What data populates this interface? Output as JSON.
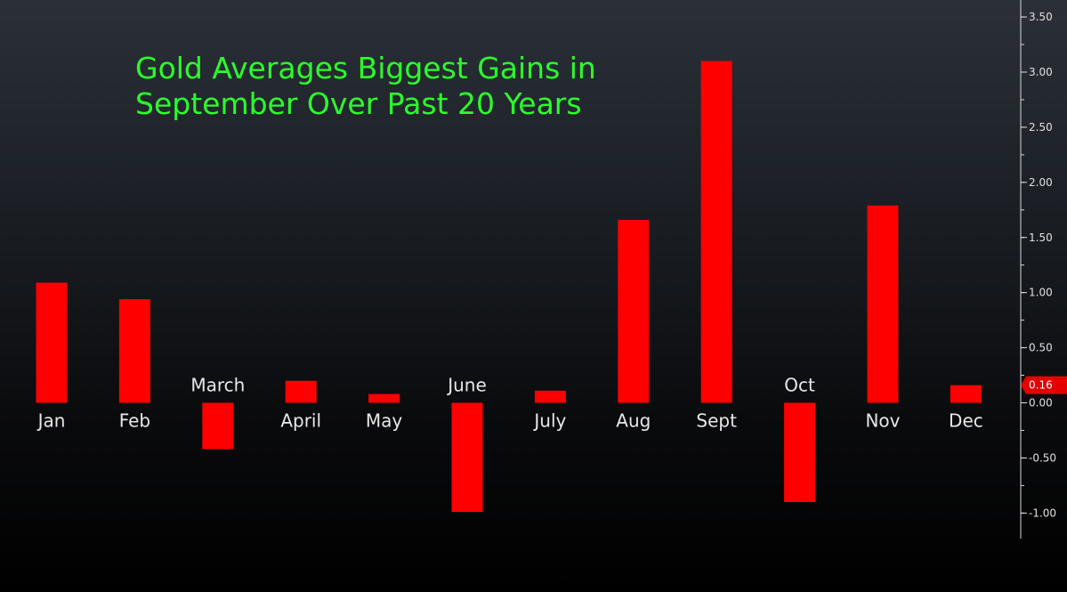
{
  "chart_data": {
    "type": "bar",
    "title_lines": [
      "Gold Averages Biggest Gains in",
      "September Over Past 20 Years"
    ],
    "categories": [
      "Jan",
      "Feb",
      "March",
      "April",
      "May",
      "June",
      "July",
      "Aug",
      "Sept",
      "Oct",
      "Nov",
      "Dec"
    ],
    "values": [
      1.09,
      0.94,
      -0.42,
      0.2,
      0.08,
      -0.99,
      0.11,
      1.66,
      3.1,
      -0.9,
      1.79,
      0.16
    ],
    "ylim": [
      -1.0,
      3.5
    ],
    "y_ticks": [
      "3.50",
      "3.00",
      "2.50",
      "2.00",
      "1.50",
      "1.00",
      "0.50",
      "0.00",
      "-0.50",
      "-1.00"
    ],
    "y_tick_values": [
      3.5,
      3.0,
      2.5,
      2.0,
      1.5,
      1.0,
      0.5,
      0.0,
      -0.5,
      -1.0
    ],
    "last_value_label": "0.16",
    "axis_position": "right",
    "grid": false,
    "bar_color": "#ff0000",
    "title_color": "#2bff2b",
    "label_color": "#e8e8e8"
  }
}
